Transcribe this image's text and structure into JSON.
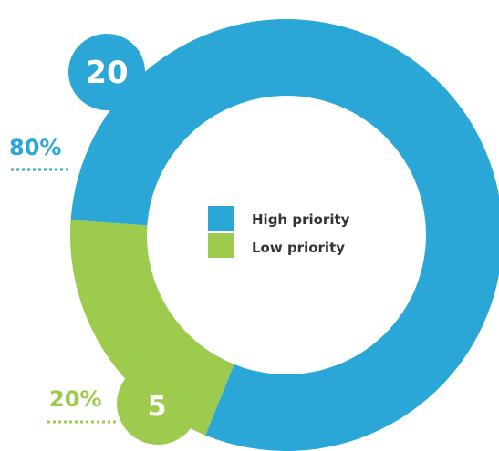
{
  "chart_data": {
    "type": "pie",
    "style": "donut",
    "categories": [
      "High priority",
      "Low priority"
    ],
    "values": [
      20,
      5
    ],
    "percent_labels": [
      "80%",
      "20%"
    ],
    "colors": [
      "#2aa7d7",
      "#9ccb4d"
    ],
    "legend": {
      "position": "center",
      "entries": [
        "High priority",
        "Low priority"
      ]
    }
  }
}
